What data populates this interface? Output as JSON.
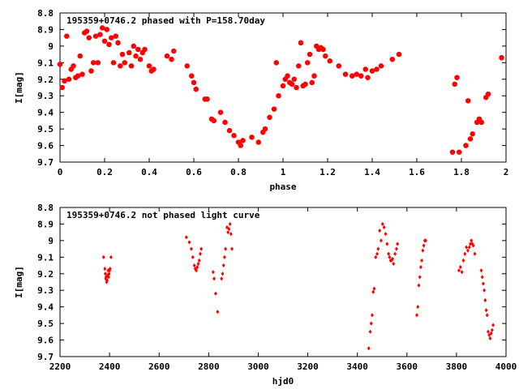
{
  "chart_data": [
    {
      "type": "scatter",
      "title": "195359+0746.2 phased with P=158.70day",
      "xlabel": "phase",
      "ylabel": "I[mag]",
      "xlim": [
        0,
        2
      ],
      "ylim": [
        8.8,
        9.7
      ],
      "y_inverted": true,
      "xticks": [
        "0",
        "0.2",
        "0.4",
        "0.6",
        "0.8",
        "1",
        "1.2",
        "1.4",
        "1.6",
        "1.8",
        "2"
      ],
      "yticks": [
        "8.8",
        "8.9",
        "9",
        "9.1",
        "9.2",
        "9.3",
        "9.4",
        "9.5",
        "9.6",
        "9.7"
      ],
      "grid": false,
      "marker_color": "#ff0000",
      "points": [
        [
          0.0,
          9.11
        ],
        [
          0.01,
          9.25
        ],
        [
          0.02,
          9.21
        ],
        [
          0.03,
          8.94
        ],
        [
          0.04,
          9.2
        ],
        [
          0.05,
          9.14
        ],
        [
          0.06,
          9.12
        ],
        [
          0.07,
          9.19
        ],
        [
          0.08,
          9.18
        ],
        [
          0.09,
          9.06
        ],
        [
          0.1,
          9.17
        ],
        [
          0.11,
          8.92
        ],
        [
          0.12,
          8.91
        ],
        [
          0.13,
          8.95
        ],
        [
          0.14,
          9.15
        ],
        [
          0.15,
          9.1
        ],
        [
          0.16,
          8.94
        ],
        [
          0.17,
          9.1
        ],
        [
          0.18,
          8.93
        ],
        [
          0.19,
          8.89
        ],
        [
          0.2,
          8.97
        ],
        [
          0.21,
          8.9
        ],
        [
          0.22,
          8.99
        ],
        [
          0.23,
          8.95
        ],
        [
          0.24,
          9.1
        ],
        [
          0.25,
          8.94
        ],
        [
          0.26,
          8.98
        ],
        [
          0.27,
          9.12
        ],
        [
          0.28,
          9.05
        ],
        [
          0.29,
          9.1
        ],
        [
          0.31,
          9.04
        ],
        [
          0.32,
          9.12
        ],
        [
          0.33,
          9.0
        ],
        [
          0.34,
          9.06
        ],
        [
          0.35,
          9.02
        ],
        [
          0.36,
          9.08
        ],
        [
          0.37,
          9.04
        ],
        [
          0.38,
          9.02
        ],
        [
          0.4,
          9.12
        ],
        [
          0.41,
          9.15
        ],
        [
          0.42,
          9.14
        ],
        [
          0.48,
          9.06
        ],
        [
          0.5,
          9.08
        ],
        [
          0.51,
          9.03
        ],
        [
          0.57,
          9.12
        ],
        [
          0.59,
          9.18
        ],
        [
          0.6,
          9.22
        ],
        [
          0.61,
          9.26
        ],
        [
          0.65,
          9.32
        ],
        [
          0.66,
          9.32
        ],
        [
          0.68,
          9.44
        ],
        [
          0.69,
          9.45
        ],
        [
          0.72,
          9.4
        ],
        [
          0.74,
          9.46
        ],
        [
          0.76,
          9.51
        ],
        [
          0.78,
          9.54
        ],
        [
          0.8,
          9.58
        ],
        [
          0.81,
          9.6
        ],
        [
          0.82,
          9.57
        ],
        [
          0.86,
          9.55
        ],
        [
          0.89,
          9.58
        ],
        [
          0.91,
          9.52
        ],
        [
          0.92,
          9.5
        ],
        [
          0.94,
          9.43
        ],
        [
          0.96,
          9.38
        ],
        [
          0.97,
          9.1
        ],
        [
          0.98,
          9.3
        ],
        [
          1.0,
          9.24
        ],
        [
          1.01,
          9.2
        ],
        [
          1.02,
          9.18
        ],
        [
          1.03,
          9.22
        ],
        [
          1.04,
          9.23
        ],
        [
          1.05,
          9.2
        ],
        [
          1.06,
          9.25
        ],
        [
          1.07,
          9.12
        ],
        [
          1.08,
          8.98
        ],
        [
          1.09,
          9.24
        ],
        [
          1.1,
          9.23
        ],
        [
          1.11,
          9.1
        ],
        [
          1.12,
          9.05
        ],
        [
          1.13,
          9.22
        ],
        [
          1.14,
          9.18
        ],
        [
          1.15,
          9.0
        ],
        [
          1.16,
          9.02
        ],
        [
          1.17,
          9.01
        ],
        [
          1.18,
          9.02
        ],
        [
          1.19,
          9.06
        ],
        [
          1.21,
          9.09
        ],
        [
          1.25,
          9.12
        ],
        [
          1.28,
          9.17
        ],
        [
          1.31,
          9.18
        ],
        [
          1.33,
          9.17
        ],
        [
          1.35,
          9.18
        ],
        [
          1.37,
          9.14
        ],
        [
          1.38,
          9.19
        ],
        [
          1.4,
          9.15
        ],
        [
          1.42,
          9.14
        ],
        [
          1.44,
          9.12
        ],
        [
          1.49,
          9.08
        ],
        [
          1.52,
          9.05
        ],
        [
          1.76,
          9.64
        ],
        [
          1.77,
          9.23
        ],
        [
          1.78,
          9.19
        ],
        [
          1.79,
          9.64
        ],
        [
          1.82,
          9.6
        ],
        [
          1.83,
          9.33
        ],
        [
          1.84,
          9.56
        ],
        [
          1.85,
          9.53
        ],
        [
          1.87,
          9.46
        ],
        [
          1.88,
          9.44
        ],
        [
          1.89,
          9.46
        ],
        [
          1.91,
          9.31
        ],
        [
          1.92,
          9.29
        ],
        [
          1.98,
          9.07
        ]
      ]
    },
    {
      "type": "scatter",
      "title": "195359+0746.2 not phased light curve",
      "xlabel": "hjd0",
      "ylabel": "I[mag]",
      "xlim": [
        2200,
        4000
      ],
      "ylim": [
        8.8,
        9.7
      ],
      "y_inverted": true,
      "xticks": [
        "2200",
        "2400",
        "2600",
        "2800",
        "3000",
        "3200",
        "3400",
        "3600",
        "3800",
        "4000"
      ],
      "yticks": [
        "8.8",
        "8.9",
        "9",
        "9.1",
        "9.2",
        "9.3",
        "9.4",
        "9.5",
        "9.6",
        "9.7"
      ],
      "grid": false,
      "marker_color": "#ff0000",
      "points": [
        [
          2376,
          9.1
        ],
        [
          2381,
          9.17
        ],
        [
          2383,
          9.2
        ],
        [
          2385,
          9.23
        ],
        [
          2386,
          9.22
        ],
        [
          2388,
          9.25
        ],
        [
          2390,
          9.24
        ],
        [
          2392,
          9.21
        ],
        [
          2394,
          9.18
        ],
        [
          2396,
          9.22
        ],
        [
          2398,
          9.2
        ],
        [
          2400,
          9.18
        ],
        [
          2402,
          9.17
        ],
        [
          2406,
          9.1
        ],
        [
          2710,
          8.98
        ],
        [
          2722,
          9.01
        ],
        [
          2730,
          9.05
        ],
        [
          2736,
          9.1
        ],
        [
          2742,
          9.15
        ],
        [
          2746,
          9.17
        ],
        [
          2750,
          9.18
        ],
        [
          2754,
          9.16
        ],
        [
          2758,
          9.14
        ],
        [
          2762,
          9.12
        ],
        [
          2766,
          9.08
        ],
        [
          2770,
          9.05
        ],
        [
          2818,
          9.19
        ],
        [
          2822,
          9.23
        ],
        [
          2828,
          9.32
        ],
        [
          2836,
          9.43
        ],
        [
          2852,
          9.23
        ],
        [
          2856,
          9.2
        ],
        [
          2860,
          9.15
        ],
        [
          2864,
          9.1
        ],
        [
          2868,
          9.05
        ],
        [
          2874,
          8.92
        ],
        [
          2878,
          8.95
        ],
        [
          2882,
          8.93
        ],
        [
          2886,
          8.9
        ],
        [
          2890,
          8.96
        ],
        [
          2894,
          9.05
        ],
        [
          3446,
          9.65
        ],
        [
          3452,
          9.55
        ],
        [
          3456,
          9.5
        ],
        [
          3460,
          9.45
        ],
        [
          3464,
          9.31
        ],
        [
          3468,
          9.29
        ],
        [
          3474,
          9.1
        ],
        [
          3480,
          9.08
        ],
        [
          3484,
          9.05
        ],
        [
          3490,
          8.94
        ],
        [
          3496,
          9.0
        ],
        [
          3502,
          8.9
        ],
        [
          3508,
          8.92
        ],
        [
          3514,
          8.96
        ],
        [
          3520,
          9.02
        ],
        [
          3526,
          9.08
        ],
        [
          3530,
          9.1
        ],
        [
          3534,
          9.12
        ],
        [
          3538,
          9.12
        ],
        [
          3542,
          9.11
        ],
        [
          3546,
          9.14
        ],
        [
          3552,
          9.08
        ],
        [
          3558,
          9.05
        ],
        [
          3562,
          9.02
        ],
        [
          3640,
          9.45
        ],
        [
          3644,
          9.4
        ],
        [
          3648,
          9.27
        ],
        [
          3652,
          9.22
        ],
        [
          3656,
          9.16
        ],
        [
          3660,
          9.12
        ],
        [
          3664,
          9.06
        ],
        [
          3668,
          9.03
        ],
        [
          3672,
          9.0
        ],
        [
          3676,
          9.0
        ],
        [
          3810,
          9.18
        ],
        [
          3816,
          9.16
        ],
        [
          3822,
          9.19
        ],
        [
          3828,
          9.12
        ],
        [
          3834,
          9.08
        ],
        [
          3840,
          9.04
        ],
        [
          3846,
          9.06
        ],
        [
          3852,
          9.04
        ],
        [
          3856,
          9.02
        ],
        [
          3860,
          9.0
        ],
        [
          3864,
          9.02
        ],
        [
          3868,
          9.03
        ],
        [
          3874,
          9.08
        ],
        [
          3900,
          9.18
        ],
        [
          3904,
          9.22
        ],
        [
          3908,
          9.26
        ],
        [
          3912,
          9.3
        ],
        [
          3916,
          9.36
        ],
        [
          3920,
          9.42
        ],
        [
          3924,
          9.45
        ],
        [
          3928,
          9.55
        ],
        [
          3932,
          9.57
        ],
        [
          3936,
          9.59
        ],
        [
          3940,
          9.56
        ],
        [
          3944,
          9.54
        ],
        [
          3948,
          9.51
        ]
      ]
    }
  ]
}
